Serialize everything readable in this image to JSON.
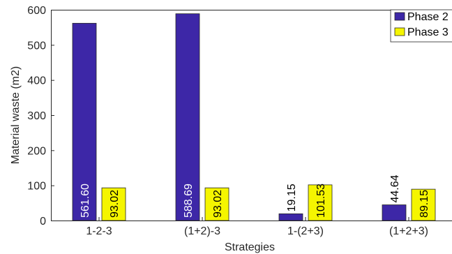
{
  "chart_data": {
    "type": "bar",
    "title": "",
    "xlabel": "Strategies",
    "ylabel": "Material waste (m2)",
    "ylim": [
      0,
      600
    ],
    "yticks": [
      0,
      100,
      200,
      300,
      400,
      500,
      600
    ],
    "grid": false,
    "legend_position": "top-right",
    "categories": [
      "1-2-3",
      "(1+2)-3",
      "1-(2+3)",
      "(1+2+3)"
    ],
    "series": [
      {
        "name": "Phase 2",
        "values": [
          561.6,
          588.69,
          19.15,
          44.64
        ],
        "labels": [
          "561.60",
          "588.69",
          "19.15",
          "44.64"
        ],
        "color": "#3D27A7",
        "label_color": "#ffffff"
      },
      {
        "name": "Phase 3",
        "values": [
          93.02,
          93.02,
          101.53,
          89.15
        ],
        "labels": [
          "93.02",
          "93.02",
          "101.53",
          "89.15"
        ],
        "color": "#F5F500",
        "label_color": "#000000"
      }
    ]
  }
}
